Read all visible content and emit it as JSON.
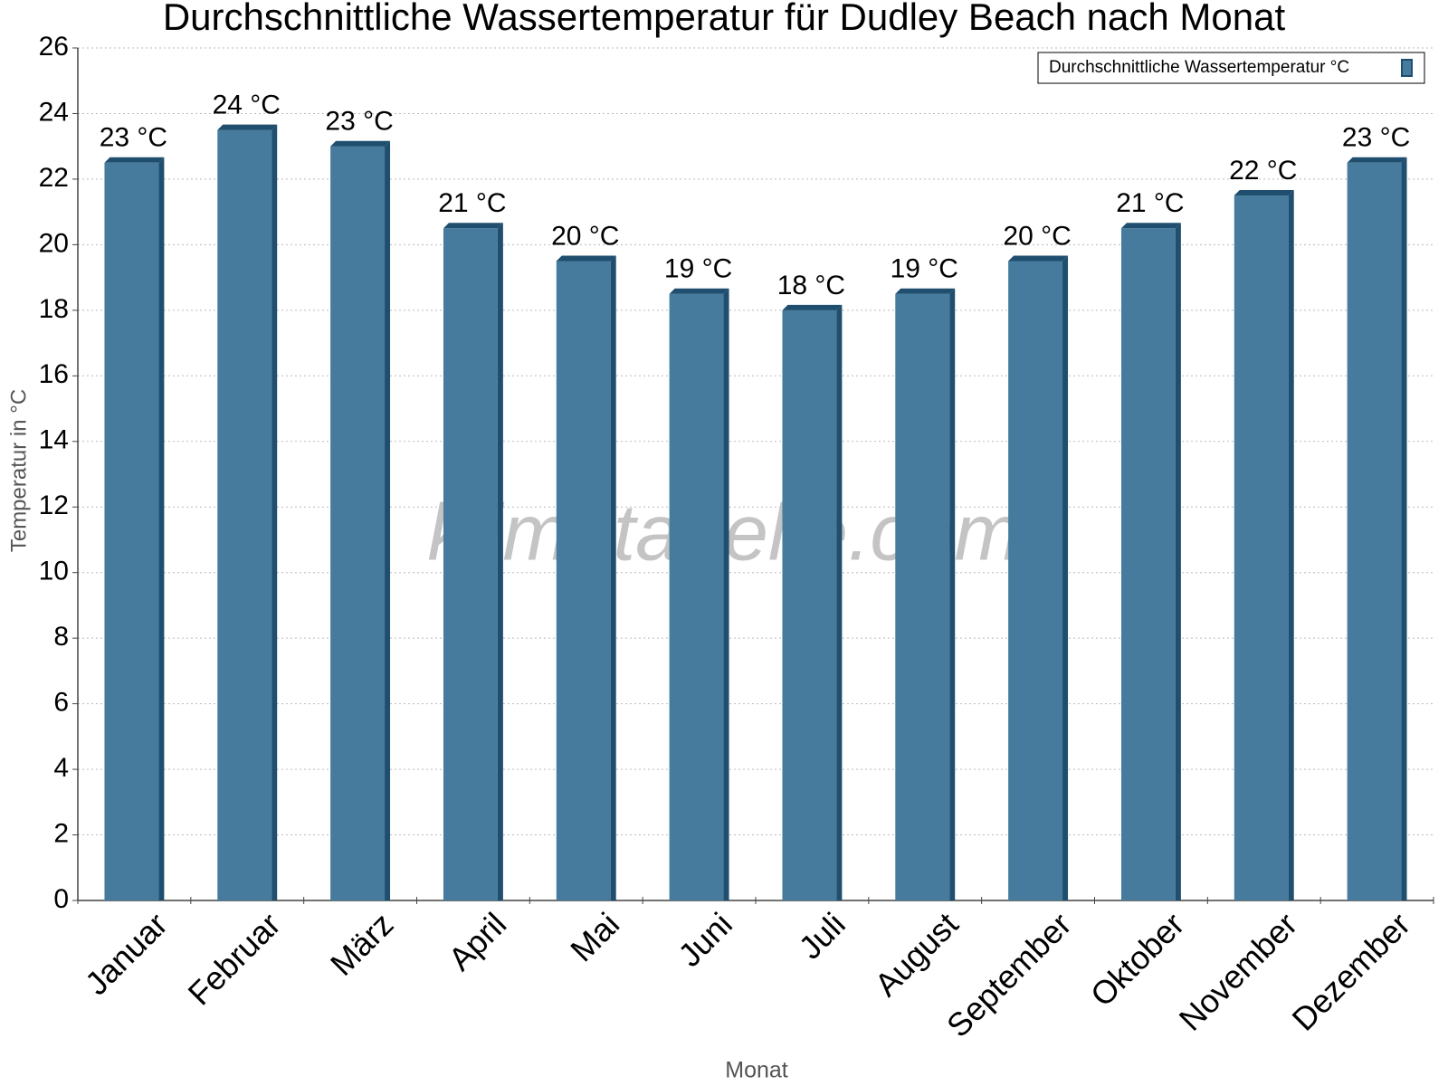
{
  "chart_data": {
    "type": "bar",
    "title": "Durchschnittliche Wassertemperatur für Dudley Beach nach Monat",
    "x_label": "Monat",
    "y_label": "Temperatur in °C",
    "watermark": "klimatabelle.com",
    "categories": [
      "Januar",
      "Februar",
      "März",
      "April",
      "Mai",
      "Juni",
      "Juli",
      "August",
      "September",
      "Oktober",
      "November",
      "Dezember"
    ],
    "series": [
      {
        "name": "Durchschnittliche Wassertemperatur °C",
        "color": "#467b9d",
        "values": [
          22.5,
          23.5,
          23,
          20.5,
          19.5,
          18.5,
          18,
          18.5,
          19.5,
          20.5,
          21.5,
          22.5
        ],
        "value_labels": [
          "23 °C",
          "24 °C",
          "23 °C",
          "21 °C",
          "20 °C",
          "19 °C",
          "18 °C",
          "19 °C",
          "20 °C",
          "21 °C",
          "22 °C",
          "23 °C"
        ]
      }
    ],
    "ylim": [
      0,
      26
    ],
    "yticks": [
      0,
      2,
      4,
      6,
      8,
      10,
      12,
      14,
      16,
      18,
      20,
      22,
      24,
      26
    ],
    "grid": true,
    "legend": "top-right"
  }
}
